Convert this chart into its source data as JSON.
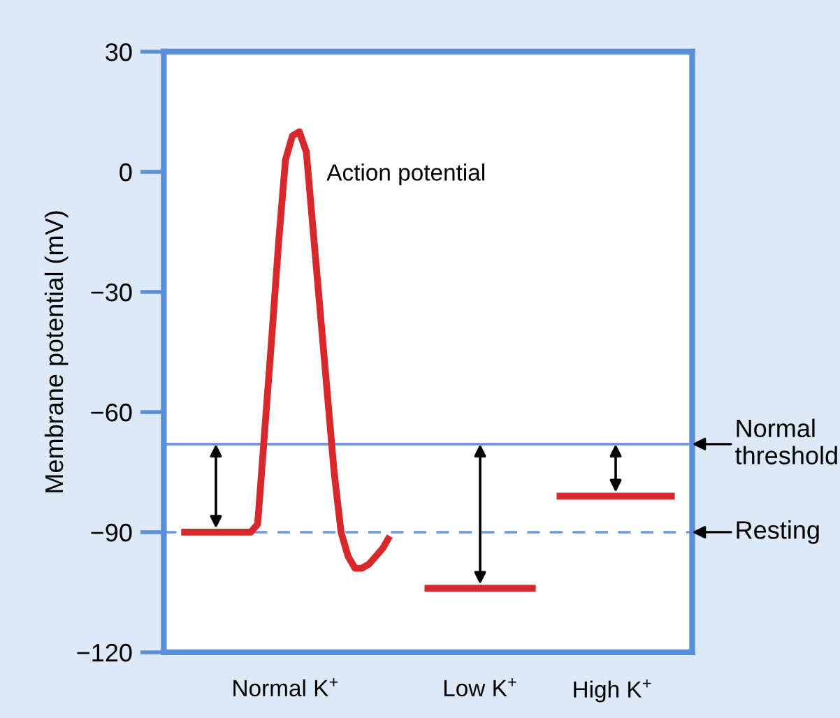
{
  "chart_data": {
    "type": "line",
    "ylabel": "Membrane potential (mV)",
    "ylim": [
      -120,
      30
    ],
    "yticks": [
      30,
      0,
      -30,
      -60,
      -90,
      -120
    ],
    "categories": [
      null,
      null,
      null,
      null,
      null,
      null,
      null,
      null,
      null,
      null,
      null,
      null,
      null,
      null,
      null,
      null,
      null,
      "Normal K$^{+}$",
      null,
      null,
      null,
      null,
      null,
      null,
      null,
      null,
      null,
      null,
      null,
      null,
      null,
      null,
      null,
      null,
      null,
      null,
      null,
      null,
      null,
      null,
      null,
      null,
      null,
      null,
      null,
      "Low K$^{+}$",
      null,
      null,
      null,
      null,
      null,
      null,
      null,
      null,
      null,
      null,
      null,
      null,
      null,
      null,
      null,
      null,
      null,
      null,
      "High K$^{+}$",
      null,
      null,
      null,
      null,
      null,
      null,
      null,
      null,
      null,
      null,
      null
    ],
    "series": [
      {
        "name": "Action potential",
        "color": "#d8282c",
        "values": [
          null,
          null,
          -90,
          -90,
          -90,
          -90,
          -90,
          -90,
          -90,
          -90,
          -90,
          -90,
          -90,
          -88,
          -65,
          -42,
          -18,
          3,
          9,
          10,
          5,
          -15,
          -35,
          -55,
          -75,
          -90,
          -96,
          -99,
          -99,
          -98,
          -96,
          -94,
          -91,
          null,
          null,
          null,
          null,
          null,
          null,
          null,
          null,
          null,
          null,
          null,
          null,
          null,
          null,
          null,
          null,
          null,
          null,
          null,
          null,
          null,
          null,
          null,
          null,
          null,
          null,
          null,
          null,
          null,
          null,
          null,
          null,
          null,
          null,
          null,
          null,
          null,
          null,
          null,
          null,
          null,
          null,
          null
        ]
      },
      {
        "color": "#d8282c",
        "values": [
          null,
          null,
          null,
          null,
          null,
          null,
          null,
          null,
          null,
          null,
          null,
          null,
          null,
          null,
          null,
          null,
          null,
          null,
          null,
          null,
          null,
          null,
          null,
          null,
          null,
          null,
          null,
          null,
          null,
          null,
          null,
          null,
          null,
          null,
          null,
          null,
          null,
          -104,
          -104,
          -104,
          -104,
          -104,
          -104,
          -104,
          -104,
          -104,
          -104,
          -104,
          -104,
          -104,
          -104,
          -104,
          -104,
          -104,
          null,
          null,
          null,
          null,
          null,
          null,
          null,
          null,
          null,
          null,
          null,
          null,
          null,
          null,
          null,
          null,
          null,
          null,
          null,
          null,
          null,
          null
        ]
      },
      {
        "color": "#d8282c",
        "values": [
          null,
          null,
          null,
          null,
          null,
          null,
          null,
          null,
          null,
          null,
          null,
          null,
          null,
          null,
          null,
          null,
          null,
          null,
          null,
          null,
          null,
          null,
          null,
          null,
          null,
          null,
          null,
          null,
          null,
          null,
          null,
          null,
          null,
          null,
          null,
          null,
          null,
          null,
          null,
          null,
          null,
          null,
          null,
          null,
          null,
          null,
          null,
          null,
          null,
          null,
          null,
          null,
          null,
          null,
          null,
          null,
          -81,
          -81,
          -81,
          -81,
          -81,
          -81,
          -81,
          -81,
          -81,
          -81,
          -81,
          -81,
          -81,
          -81,
          -81,
          -81,
          -81,
          -81,
          null,
          null
        ]
      }
    ],
    "ref_lines": [
      {
        "axis": "y",
        "value": -68,
        "label": "Normal\nthreshold",
        "color": "#6f98d8",
        "line_style": "solid"
      },
      {
        "axis": "y",
        "value": -90,
        "label": "Resting",
        "color": "#6f98d8",
        "line_style": "dashed"
      }
    ],
    "grid": false,
    "legend": false,
    "marker": "none",
    "line_style": "solid"
  }
}
